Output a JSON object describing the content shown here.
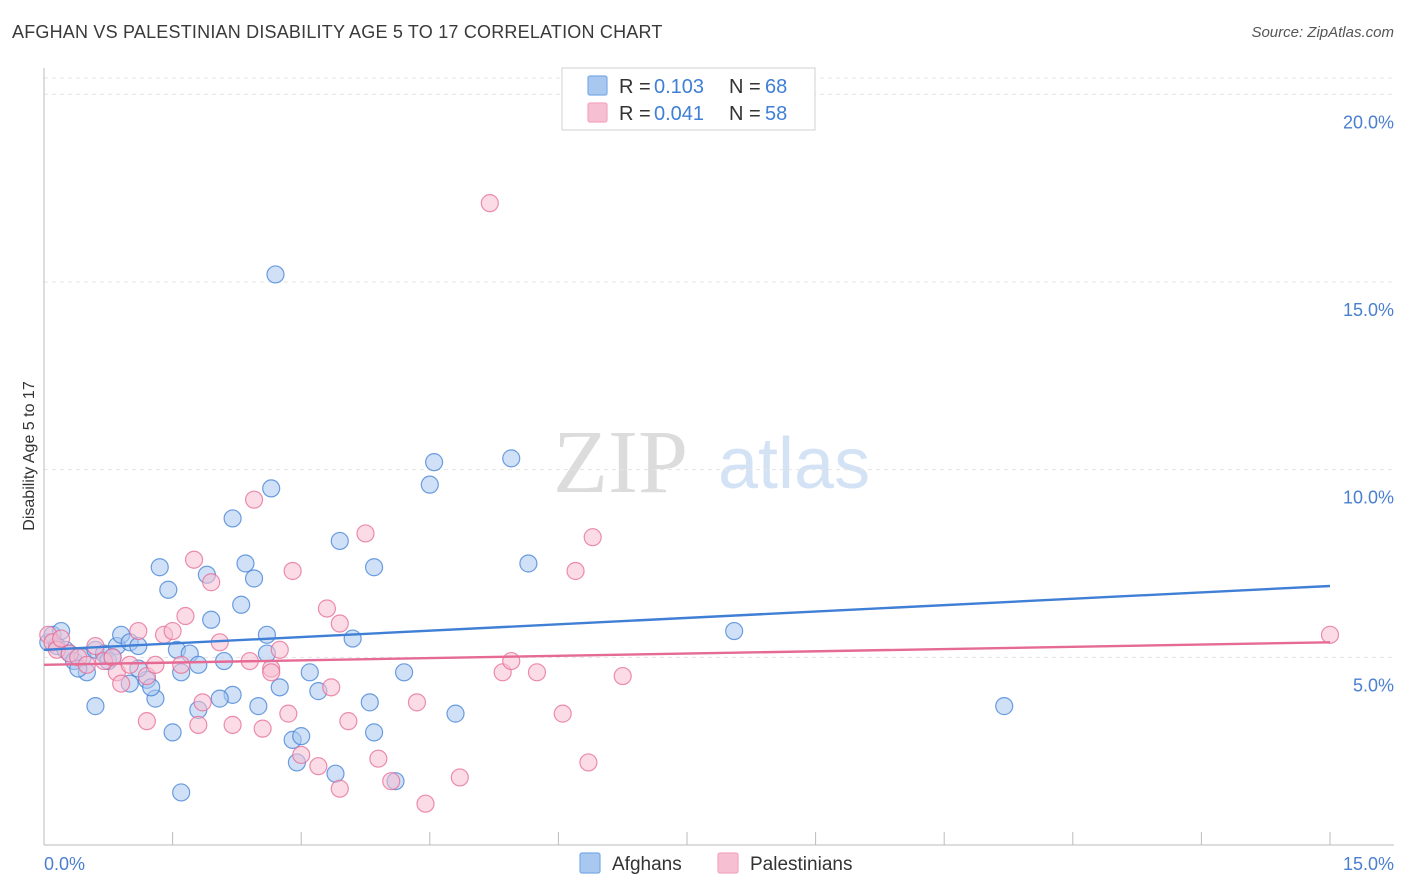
{
  "header": {
    "title": "AFGHAN VS PALESTINIAN DISABILITY AGE 5 TO 17 CORRELATION CHART",
    "source": "Source: ZipAtlas.com"
  },
  "watermark": {
    "zip": "ZIP",
    "atlas": "atlas"
  },
  "legend": {
    "r_label": "R =",
    "n_label": "N =",
    "items": [
      {
        "r": "0.103",
        "n": "68",
        "color": "#7aaae8"
      },
      {
        "r": "0.041",
        "n": "58",
        "color": "#f4a6bf"
      }
    ]
  },
  "bottom_legend": [
    {
      "label": "Afghans",
      "color": "#7aaae8"
    },
    {
      "label": "Palestinians",
      "color": "#f4a6bf"
    }
  ],
  "chart_data": {
    "type": "scatter",
    "title": "AFGHAN VS PALESTINIAN DISABILITY AGE 5 TO 17 CORRELATION CHART",
    "xlabel": "",
    "ylabel": "Disability Age 5 to 17",
    "xlim": [
      0,
      15
    ],
    "ylim": [
      0,
      20
    ],
    "x_tick_labels": [
      "0.0%",
      "15.0%"
    ],
    "y_ticks": [
      5,
      10,
      15,
      20
    ],
    "y_tick_labels": [
      "5.0%",
      "10.0%",
      "15.0%",
      "20.0%"
    ],
    "grid": true,
    "legend_position": "top-center",
    "series": [
      {
        "name": "Afghans",
        "color": "#3f7fd6",
        "fill": "#a9c8f0",
        "trend": {
          "x": [
            0,
            15
          ],
          "y": [
            5.2,
            6.9
          ]
        },
        "points": [
          [
            0.05,
            5.4
          ],
          [
            0.1,
            5.6
          ],
          [
            0.15,
            5.3
          ],
          [
            0.2,
            5.7
          ],
          [
            0.25,
            5.2
          ],
          [
            0.3,
            5.1
          ],
          [
            0.35,
            4.9
          ],
          [
            0.45,
            5.0
          ],
          [
            0.5,
            4.6
          ],
          [
            0.6,
            5.2
          ],
          [
            0.7,
            5.1
          ],
          [
            0.75,
            4.9
          ],
          [
            0.85,
            5.3
          ],
          [
            0.9,
            5.6
          ],
          [
            1.0,
            5.4
          ],
          [
            1.1,
            5.3
          ],
          [
            1.2,
            4.4
          ],
          [
            1.3,
            3.9
          ],
          [
            1.35,
            7.4
          ],
          [
            1.45,
            6.8
          ],
          [
            1.55,
            5.2
          ],
          [
            1.6,
            4.6
          ],
          [
            1.7,
            5.1
          ],
          [
            1.8,
            4.8
          ],
          [
            1.9,
            7.2
          ],
          [
            1.95,
            6.0
          ],
          [
            2.1,
            4.9
          ],
          [
            2.2,
            4.0
          ],
          [
            2.3,
            6.4
          ],
          [
            2.35,
            7.5
          ],
          [
            2.45,
            7.1
          ],
          [
            2.6,
            5.6
          ],
          [
            2.65,
            9.5
          ],
          [
            2.75,
            4.2
          ],
          [
            2.9,
            2.8
          ],
          [
            2.95,
            2.2
          ],
          [
            3.1,
            4.6
          ],
          [
            3.2,
            4.1
          ],
          [
            3.4,
            1.9
          ],
          [
            3.45,
            8.1
          ],
          [
            3.6,
            5.5
          ],
          [
            3.8,
            3.8
          ],
          [
            3.85,
            7.4
          ],
          [
            4.1,
            1.7
          ],
          [
            4.2,
            4.6
          ],
          [
            4.5,
            9.6
          ],
          [
            4.55,
            10.2
          ],
          [
            4.8,
            3.5
          ],
          [
            5.45,
            10.3
          ],
          [
            5.65,
            7.5
          ],
          [
            0.6,
            3.7
          ],
          [
            1.0,
            4.3
          ],
          [
            1.5,
            3.0
          ],
          [
            1.8,
            3.6
          ],
          [
            2.05,
            3.9
          ],
          [
            2.5,
            3.7
          ],
          [
            3.0,
            2.9
          ],
          [
            3.85,
            3.0
          ],
          [
            1.6,
            1.4
          ],
          [
            2.2,
            8.7
          ],
          [
            8.05,
            5.7
          ],
          [
            11.2,
            3.7
          ],
          [
            2.7,
            15.2
          ],
          [
            0.8,
            5.0
          ],
          [
            1.25,
            4.2
          ],
          [
            2.6,
            5.1
          ],
          [
            0.4,
            4.7
          ],
          [
            1.1,
            4.7
          ]
        ]
      },
      {
        "name": "Palestinians",
        "color": "#e56a94",
        "fill": "#f7c0d2",
        "trend": {
          "x": [
            0,
            15
          ],
          "y": [
            4.8,
            5.4
          ]
        },
        "points": [
          [
            0.05,
            5.6
          ],
          [
            0.1,
            5.4
          ],
          [
            0.15,
            5.2
          ],
          [
            0.2,
            5.5
          ],
          [
            0.3,
            5.1
          ],
          [
            0.4,
            5.0
          ],
          [
            0.5,
            4.8
          ],
          [
            0.6,
            5.3
          ],
          [
            0.7,
            4.9
          ],
          [
            0.8,
            5.0
          ],
          [
            0.85,
            4.6
          ],
          [
            0.9,
            4.3
          ],
          [
            1.0,
            4.8
          ],
          [
            1.1,
            5.7
          ],
          [
            1.2,
            4.5
          ],
          [
            1.3,
            4.8
          ],
          [
            1.4,
            5.6
          ],
          [
            1.5,
            5.7
          ],
          [
            1.6,
            4.8
          ],
          [
            1.65,
            6.1
          ],
          [
            1.75,
            7.6
          ],
          [
            1.85,
            3.8
          ],
          [
            1.95,
            7.0
          ],
          [
            2.05,
            5.4
          ],
          [
            2.2,
            3.2
          ],
          [
            2.4,
            4.9
          ],
          [
            2.45,
            9.2
          ],
          [
            2.55,
            3.1
          ],
          [
            2.65,
            4.7
          ],
          [
            2.75,
            5.2
          ],
          [
            2.85,
            3.5
          ],
          [
            2.9,
            7.3
          ],
          [
            3.0,
            2.4
          ],
          [
            3.2,
            2.1
          ],
          [
            3.3,
            6.3
          ],
          [
            3.35,
            4.2
          ],
          [
            3.45,
            5.9
          ],
          [
            3.55,
            3.3
          ],
          [
            3.75,
            8.3
          ],
          [
            3.9,
            2.3
          ],
          [
            4.05,
            1.7
          ],
          [
            4.35,
            3.8
          ],
          [
            4.45,
            1.1
          ],
          [
            4.85,
            1.8
          ],
          [
            5.35,
            4.6
          ],
          [
            5.45,
            4.9
          ],
          [
            5.75,
            4.6
          ],
          [
            6.05,
            3.5
          ],
          [
            6.35,
            2.2
          ],
          [
            6.2,
            7.3
          ],
          [
            6.4,
            8.2
          ],
          [
            5.2,
            17.1
          ],
          [
            6.75,
            4.5
          ],
          [
            2.65,
            4.6
          ],
          [
            3.45,
            1.5
          ],
          [
            1.2,
            3.3
          ],
          [
            1.8,
            3.2
          ],
          [
            15.0,
            5.6
          ]
        ]
      }
    ]
  }
}
